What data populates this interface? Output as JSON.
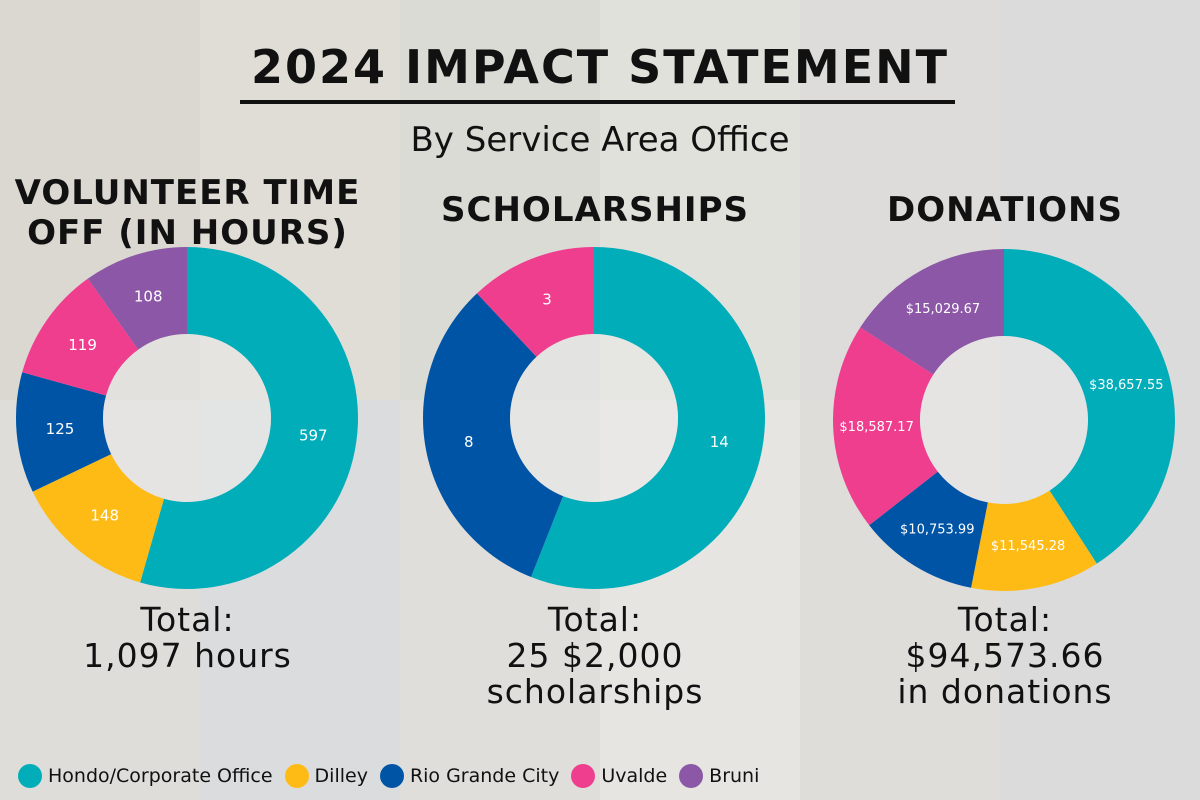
{
  "header": {
    "title": "2024 IMPACT STATEMENT",
    "subtitle": "By Service Area Office"
  },
  "legend": [
    {
      "label": "Hondo/Corporate Office",
      "color": "#00adb9"
    },
    {
      "label": "Dilley",
      "color": "#ffbb15"
    },
    {
      "label": "Rio Grande City",
      "color": "#0054a6"
    },
    {
      "label": "Uvalde",
      "color": "#ef3e8e"
    },
    {
      "label": "Bruni",
      "color": "#8b57a6"
    }
  ],
  "chart_data": [
    {
      "type": "pie",
      "title": "VOLUNTEER TIME OFF (IN HOURS)",
      "title_lines": [
        "VOLUNTEER TIME",
        "OFF (IN HOURS)"
      ],
      "categories": [
        "Hondo/Corporate Office",
        "Dilley",
        "Rio Grande City",
        "Uvalde",
        "Bruni"
      ],
      "values": [
        597,
        148,
        125,
        119,
        108
      ],
      "labels": [
        "597",
        "148",
        "125",
        "119",
        "108"
      ],
      "total_lines": [
        "Total:",
        "1,097 hours"
      ]
    },
    {
      "type": "pie",
      "title": "SCHOLARSHIPS",
      "title_lines": [
        "SCHOLARSHIPS"
      ],
      "categories": [
        "Hondo/Corporate Office",
        "Rio Grande City",
        "Uvalde"
      ],
      "values": [
        14,
        8,
        3
      ],
      "labels": [
        "14",
        "8",
        "3"
      ],
      "total_lines": [
        "Total:",
        "25 $2,000",
        "scholarships"
      ]
    },
    {
      "type": "pie",
      "title": "DONATIONS",
      "title_lines": [
        "DONATIONS"
      ],
      "categories": [
        "Hondo/Corporate Office",
        "Dilley",
        "Rio Grande City",
        "Uvalde",
        "Bruni"
      ],
      "values": [
        38657.55,
        11545.28,
        10753.99,
        18587.17,
        15029.67
      ],
      "labels": [
        "$38,657.55",
        "$11,545.28",
        "$10,753.99",
        "$18,587.17",
        "$15,029.67"
      ],
      "total_lines": [
        "Total:",
        "$94,573.66",
        "in donations"
      ]
    }
  ]
}
